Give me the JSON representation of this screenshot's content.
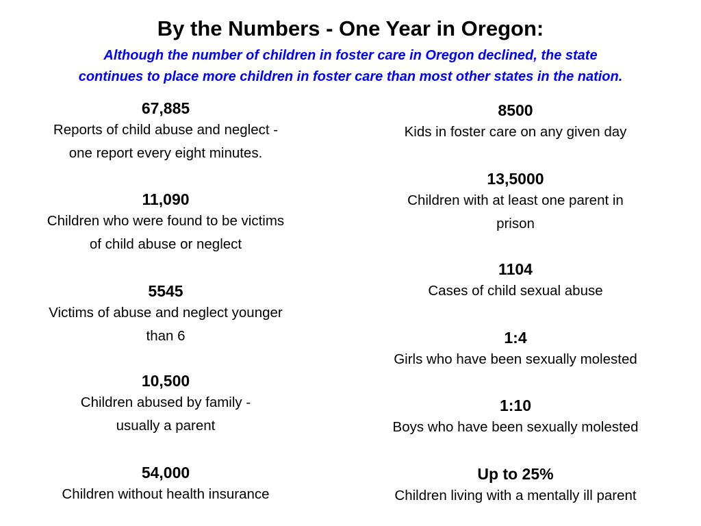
{
  "header": {
    "title": "By the Numbers - One Year in Oregon:",
    "subtitle_line1": "Although the number of children in foster care in Oregon declined, the state",
    "subtitle_line2": "continues to place more children in foster care than most other states in the nation."
  },
  "left_column": [
    {
      "number": "67,885",
      "line1": "Reports of child abuse and neglect -",
      "line2": "one report every eight minutes."
    },
    {
      "number": "11,090",
      "line1": "Children who were found to be victims",
      "line2": "of child abuse or neglect"
    },
    {
      "number": "5545",
      "line1": "Victims of abuse and neglect younger",
      "line2": "than  6"
    },
    {
      "number": "10,500",
      "line1": "Children abused by family -",
      "line2": "usually a parent"
    },
    {
      "number": "54,000",
      "line1": "Children without health insurance"
    }
  ],
  "right_column": [
    {
      "number": "8500",
      "line1": "Kids in foster care on any given day"
    },
    {
      "number": "13,5000",
      "line1": "Children with at least one parent in",
      "line2": "prison"
    },
    {
      "number": "1104",
      "line1": "Cases of child sexual abuse"
    },
    {
      "number": "1:4",
      "line1": "Girls who have been sexually molested"
    },
    {
      "number": "1:10",
      "line1": "Boys who have been sexually molested"
    },
    {
      "number": "Up to 25%",
      "line1": "Children living with a mentally ill parent"
    }
  ]
}
